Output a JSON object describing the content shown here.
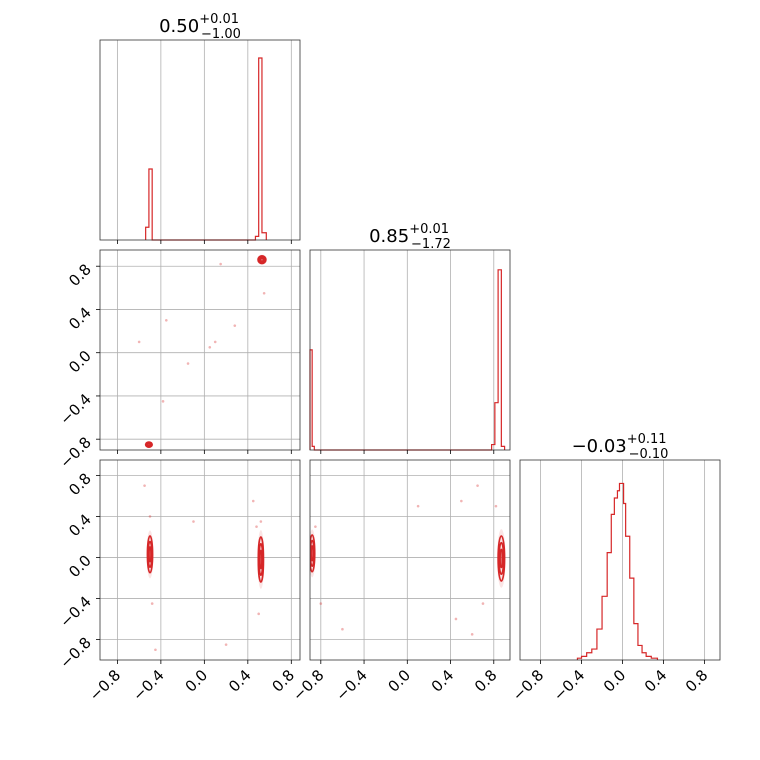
{
  "colors": {
    "hist": "#d62728",
    "grid": "#b0b0b0",
    "frame": "#000000"
  },
  "titles": [
    {
      "value": "0.50",
      "sup": "+0.01",
      "sub": "−1.00"
    },
    {
      "value": "0.85",
      "sup": "+0.01",
      "sub": "−1.72"
    },
    {
      "value": "−0.03",
      "sup": "+0.11",
      "sub": "−0.10"
    }
  ],
  "chart_data": {
    "type": "corner",
    "title": "",
    "grid": true,
    "ranges": [
      [
        -0.96,
        0.88
      ],
      [
        -0.9,
        0.95
      ],
      [
        -1.0,
        0.95
      ]
    ],
    "ticks": [
      -0.8,
      -0.4,
      0.0,
      0.4,
      0.8
    ],
    "tick_labels": [
      "−0.8",
      "−0.4",
      "0.0",
      "0.4",
      "0.8"
    ],
    "hist1d": [
      {
        "parameter": 0,
        "bins": [
          {
            "x0": -0.54,
            "x1": -0.51,
            "c": 0.07
          },
          {
            "x0": -0.51,
            "x1": -0.48,
            "c": 0.39
          },
          {
            "x0": -0.48,
            "x1": 0.47,
            "c": 0.0
          },
          {
            "x0": 0.47,
            "x1": 0.5,
            "c": 0.02
          },
          {
            "x0": 0.5,
            "x1": 0.53,
            "c": 1.0
          },
          {
            "x0": 0.53,
            "x1": 0.57,
            "c": 0.04
          }
        ]
      },
      {
        "parameter": 1,
        "bins": [
          {
            "x0": -0.9,
            "x1": -0.88,
            "c": 0.55
          },
          {
            "x0": -0.88,
            "x1": -0.86,
            "c": 0.02
          },
          {
            "x0": -0.86,
            "x1": 0.78,
            "c": 0.0
          },
          {
            "x0": 0.78,
            "x1": 0.81,
            "c": 0.03
          },
          {
            "x0": 0.81,
            "x1": 0.84,
            "c": 0.26
          },
          {
            "x0": 0.84,
            "x1": 0.87,
            "c": 0.99
          },
          {
            "x0": 0.87,
            "x1": 0.9,
            "c": 0.02
          }
        ]
      },
      {
        "parameter": 2,
        "bins": [
          {
            "x0": -0.44,
            "x1": -0.4,
            "c": 0.01
          },
          {
            "x0": -0.4,
            "x1": -0.35,
            "c": 0.02
          },
          {
            "x0": -0.35,
            "x1": -0.3,
            "c": 0.04
          },
          {
            "x0": -0.3,
            "x1": -0.25,
            "c": 0.06
          },
          {
            "x0": -0.25,
            "x1": -0.2,
            "c": 0.17
          },
          {
            "x0": -0.2,
            "x1": -0.15,
            "c": 0.35
          },
          {
            "x0": -0.15,
            "x1": -0.11,
            "c": 0.59
          },
          {
            "x0": -0.11,
            "x1": -0.08,
            "c": 0.8
          },
          {
            "x0": -0.08,
            "x1": -0.05,
            "c": 0.89
          },
          {
            "x0": -0.05,
            "x1": -0.03,
            "c": 0.93
          },
          {
            "x0": -0.03,
            "x1": -0.01,
            "c": 0.97
          },
          {
            "x0": -0.01,
            "x1": 0.01,
            "c": 0.97
          },
          {
            "x0": 0.01,
            "x1": 0.03,
            "c": 0.86
          },
          {
            "x0": 0.03,
            "x1": 0.07,
            "c": 0.68
          },
          {
            "x0": 0.07,
            "x1": 0.11,
            "c": 0.45
          },
          {
            "x0": 0.11,
            "x1": 0.15,
            "c": 0.2
          },
          {
            "x0": 0.15,
            "x1": 0.19,
            "c": 0.08
          },
          {
            "x0": 0.19,
            "x1": 0.23,
            "c": 0.04
          },
          {
            "x0": 0.23,
            "x1": 0.28,
            "c": 0.02
          },
          {
            "x0": 0.28,
            "x1": 0.34,
            "c": 0.01
          }
        ]
      }
    ],
    "hist2d": [
      {
        "x_param": 0,
        "y_param": 1,
        "clusters": [
          {
            "cx": 0.53,
            "cy": 0.86,
            "sx": 0.018,
            "sy": 0.018
          },
          {
            "cx": -0.51,
            "cy": -0.85,
            "sx": 0.015,
            "sy": 0.012
          }
        ],
        "scatter": [
          [
            0.15,
            0.82
          ],
          [
            -0.15,
            -0.1
          ],
          [
            0.05,
            0.05
          ],
          [
            -0.35,
            0.3
          ],
          [
            0.28,
            0.25
          ],
          [
            -0.38,
            -0.45
          ],
          [
            0.55,
            0.55
          ],
          [
            -0.6,
            0.1
          ],
          [
            0.1,
            0.1
          ]
        ]
      },
      {
        "x_param": 0,
        "y_param": 2,
        "clusters": [
          {
            "cx": 0.52,
            "cy": -0.02,
            "sx": 0.012,
            "sy": 0.11
          },
          {
            "cx": -0.5,
            "cy": 0.03,
            "sx": 0.012,
            "sy": 0.09
          }
        ],
        "scatter": [
          [
            0.5,
            -0.55
          ],
          [
            0.52,
            0.35
          ],
          [
            -0.48,
            -0.45
          ],
          [
            -0.5,
            0.4
          ],
          [
            -0.55,
            0.7
          ],
          [
            0.45,
            0.55
          ],
          [
            -0.1,
            0.35
          ],
          [
            0.2,
            -0.85
          ],
          [
            0.48,
            0.3
          ],
          [
            -0.45,
            -0.9
          ]
        ]
      },
      {
        "x_param": 1,
        "y_param": 2,
        "clusters": [
          {
            "cx": 0.87,
            "cy": -0.01,
            "sx": 0.015,
            "sy": 0.11
          },
          {
            "cx": -0.88,
            "cy": 0.04,
            "sx": 0.012,
            "sy": 0.09
          }
        ],
        "scatter": [
          [
            0.5,
            0.55
          ],
          [
            0.65,
            0.7
          ],
          [
            0.7,
            -0.45
          ],
          [
            0.6,
            -0.75
          ],
          [
            -0.8,
            -0.45
          ],
          [
            -0.6,
            -0.7
          ],
          [
            -0.85,
            0.3
          ],
          [
            0.82,
            0.5
          ],
          [
            0.45,
            -0.6
          ],
          [
            0.1,
            0.5
          ]
        ]
      }
    ]
  }
}
